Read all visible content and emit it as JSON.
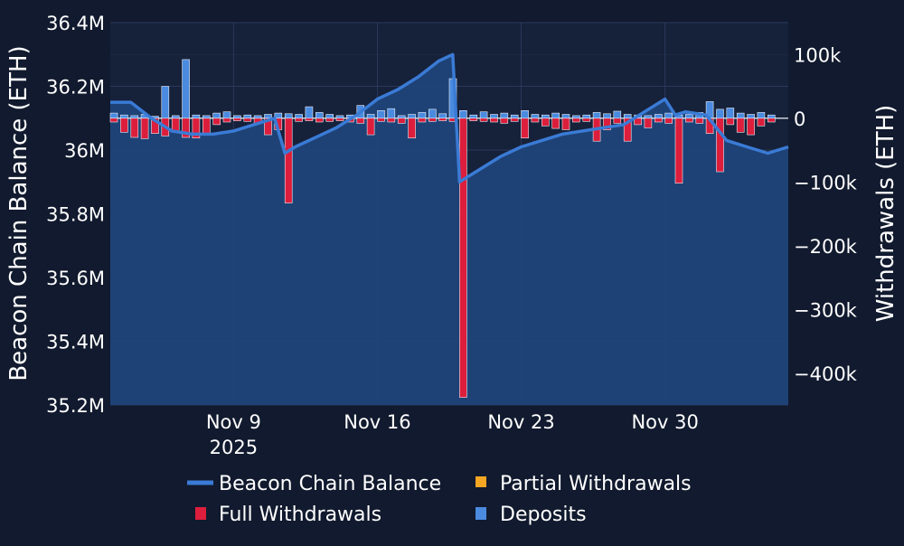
{
  "colors": {
    "background": "#111a2e",
    "plot_area": "#16213a",
    "grid": "#2a3a5c",
    "balance_line": "#3a7bd5",
    "balance_fill": "#1f4479",
    "full_withdrawals": "#dc1e3c",
    "partial_withdrawals": "#f5a623",
    "deposits": "#4a8be0"
  },
  "chart_data": {
    "type": "bar",
    "ylabel": "Beacon Chain Balance (ETH)",
    "y2label": "Withdrawals (ETH)",
    "ylim": [
      35200000,
      36400000
    ],
    "y2lim": [
      -450000,
      150000
    ],
    "x_ticks": [
      {
        "date": "2025-11-09",
        "label": "Nov 9",
        "sublabel": "2025"
      },
      {
        "date": "2025-11-16",
        "label": "Nov 16",
        "sublabel": ""
      },
      {
        "date": "2025-11-23",
        "label": "Nov 23",
        "sublabel": ""
      },
      {
        "date": "2025-11-30",
        "label": "Nov 30",
        "sublabel": ""
      }
    ],
    "y_ticks": [
      {
        "value": 35200000,
        "label": "35.2M"
      },
      {
        "value": 35400000,
        "label": "35.4M"
      },
      {
        "value": 35600000,
        "label": "35.6M"
      },
      {
        "value": 35800000,
        "label": "35.8M"
      },
      {
        "value": 36000000,
        "label": "36M"
      },
      {
        "value": 36200000,
        "label": "36.2M"
      },
      {
        "value": 36400000,
        "label": "36.4M"
      }
    ],
    "y2_ticks": [
      {
        "value": 100000,
        "label": "100k"
      },
      {
        "value": 0,
        "label": "0"
      },
      {
        "value": -100000,
        "label": "−100k"
      },
      {
        "value": -200000,
        "label": "−200k"
      },
      {
        "value": -300000,
        "label": "−300k"
      },
      {
        "value": -400000,
        "label": "−400k"
      }
    ],
    "legend": {
      "placement": "bottom",
      "items": [
        {
          "key": "balance",
          "label": "Beacon Chain Balance"
        },
        {
          "key": "partial",
          "label": "Partial Withdrawals"
        },
        {
          "key": "full",
          "label": "Full Withdrawals"
        },
        {
          "key": "deposits",
          "label": "Deposits"
        }
      ]
    },
    "series": [
      {
        "name": "Beacon Chain Balance",
        "axis": "left",
        "kind": "area-line",
        "points": [
          [
            "2025-11-03",
            36150000
          ],
          [
            "2025-11-04",
            36150000
          ],
          [
            "2025-11-05",
            36100000
          ],
          [
            "2025-11-06",
            36060000
          ],
          [
            "2025-11-07",
            36050000
          ],
          [
            "2025-11-08",
            36050000
          ],
          [
            "2025-11-09",
            36060000
          ],
          [
            "2025-11-10",
            36080000
          ],
          [
            "2025-11-11",
            36100000
          ],
          [
            "2025-11-11T12:00",
            35990000
          ],
          [
            "2025-11-12",
            36010000
          ],
          [
            "2025-11-13",
            36040000
          ],
          [
            "2025-11-14",
            36070000
          ],
          [
            "2025-11-15",
            36110000
          ],
          [
            "2025-11-16",
            36160000
          ],
          [
            "2025-11-17",
            36190000
          ],
          [
            "2025-11-18",
            36230000
          ],
          [
            "2025-11-19",
            36280000
          ],
          [
            "2025-11-19T16:00",
            36300000
          ],
          [
            "2025-11-20",
            35900000
          ],
          [
            "2025-11-21",
            35940000
          ],
          [
            "2025-11-22",
            35980000
          ],
          [
            "2025-11-23",
            36010000
          ],
          [
            "2025-11-24",
            36030000
          ],
          [
            "2025-11-25",
            36050000
          ],
          [
            "2025-11-26",
            36060000
          ],
          [
            "2025-11-27",
            36070000
          ],
          [
            "2025-11-28",
            36080000
          ],
          [
            "2025-11-29",
            36120000
          ],
          [
            "2025-11-30",
            36160000
          ],
          [
            "2025-11-30T12:00",
            36110000
          ],
          [
            "2025-12-01",
            36120000
          ],
          [
            "2025-12-02",
            36110000
          ],
          [
            "2025-12-03",
            36030000
          ],
          [
            "2025-12-04",
            36010000
          ],
          [
            "2025-12-05",
            35990000
          ],
          [
            "2025-12-06",
            36010000
          ]
        ]
      },
      {
        "name": "Deposits",
        "axis": "right",
        "kind": "bars",
        "points": [
          [
            "2025-11-03",
            8000
          ],
          [
            "2025-11-03T12:00",
            5000
          ],
          [
            "2025-11-04",
            4000
          ],
          [
            "2025-11-04T12:00",
            6000
          ],
          [
            "2025-11-05",
            3000
          ],
          [
            "2025-11-05T12:00",
            50000
          ],
          [
            "2025-11-06",
            4000
          ],
          [
            "2025-11-06T12:00",
            92000
          ],
          [
            "2025-11-07",
            5000
          ],
          [
            "2025-11-07T12:00",
            4000
          ],
          [
            "2025-11-08",
            8000
          ],
          [
            "2025-11-08T12:00",
            10000
          ],
          [
            "2025-11-09",
            4000
          ],
          [
            "2025-11-09T12:00",
            5000
          ],
          [
            "2025-11-10",
            4000
          ],
          [
            "2025-11-10T12:00",
            6000
          ],
          [
            "2025-11-11",
            8000
          ],
          [
            "2025-11-11T12:00",
            7000
          ],
          [
            "2025-11-12",
            6000
          ],
          [
            "2025-11-12T12:00",
            18000
          ],
          [
            "2025-11-13",
            9000
          ],
          [
            "2025-11-13T12:00",
            6000
          ],
          [
            "2025-11-14",
            4000
          ],
          [
            "2025-11-14T12:00",
            5000
          ],
          [
            "2025-11-15",
            20000
          ],
          [
            "2025-11-15T12:00",
            6000
          ],
          [
            "2025-11-16",
            12000
          ],
          [
            "2025-11-16T12:00",
            15000
          ],
          [
            "2025-11-17",
            4000
          ],
          [
            "2025-11-17T12:00",
            6000
          ],
          [
            "2025-11-18",
            9000
          ],
          [
            "2025-11-18T12:00",
            14000
          ],
          [
            "2025-11-19",
            7000
          ],
          [
            "2025-11-19T12:00",
            62000
          ],
          [
            "2025-11-20",
            12000
          ],
          [
            "2025-11-20T12:00",
            5000
          ],
          [
            "2025-11-21",
            10000
          ],
          [
            "2025-11-21T12:00",
            6000
          ],
          [
            "2025-11-22",
            8000
          ],
          [
            "2025-11-22T12:00",
            5000
          ],
          [
            "2025-11-23",
            12000
          ],
          [
            "2025-11-23T12:00",
            6000
          ],
          [
            "2025-11-24",
            5000
          ],
          [
            "2025-11-24T12:00",
            8000
          ],
          [
            "2025-11-25",
            6000
          ],
          [
            "2025-11-25T12:00",
            4000
          ],
          [
            "2025-11-26",
            5000
          ],
          [
            "2025-11-26T12:00",
            9000
          ],
          [
            "2025-11-27",
            7000
          ],
          [
            "2025-11-27T12:00",
            11000
          ],
          [
            "2025-11-28",
            6000
          ],
          [
            "2025-11-28T12:00",
            5000
          ],
          [
            "2025-11-29",
            4000
          ],
          [
            "2025-11-29T12:00",
            6000
          ],
          [
            "2025-11-30",
            8000
          ],
          [
            "2025-11-30T12:00",
            5000
          ],
          [
            "2025-12-01",
            6000
          ],
          [
            "2025-12-01T12:00",
            9000
          ],
          [
            "2025-12-02",
            26000
          ],
          [
            "2025-12-02T12:00",
            14000
          ],
          [
            "2025-12-03",
            16000
          ],
          [
            "2025-12-03T12:00",
            8000
          ],
          [
            "2025-12-04",
            6000
          ],
          [
            "2025-12-04T12:00",
            9000
          ],
          [
            "2025-12-05",
            5000
          ]
        ]
      },
      {
        "name": "Full Withdrawals",
        "axis": "right",
        "kind": "bars",
        "points": [
          [
            "2025-11-03",
            -6000
          ],
          [
            "2025-11-03T12:00",
            -22000
          ],
          [
            "2025-11-04",
            -30000
          ],
          [
            "2025-11-04T12:00",
            -32000
          ],
          [
            "2025-11-05",
            -24000
          ],
          [
            "2025-11-05T12:00",
            -28000
          ],
          [
            "2025-11-06",
            -22000
          ],
          [
            "2025-11-06T12:00",
            -30000
          ],
          [
            "2025-11-07",
            -31000
          ],
          [
            "2025-11-07T12:00",
            -26000
          ],
          [
            "2025-11-08",
            -10000
          ],
          [
            "2025-11-08T12:00",
            -6000
          ],
          [
            "2025-11-09",
            -4000
          ],
          [
            "2025-11-09T12:00",
            -5000
          ],
          [
            "2025-11-10",
            -8000
          ],
          [
            "2025-11-10T12:00",
            -26000
          ],
          [
            "2025-11-11",
            -18000
          ],
          [
            "2025-11-11T12:00",
            -133000
          ],
          [
            "2025-11-12",
            -5000
          ],
          [
            "2025-11-12T12:00",
            -4000
          ],
          [
            "2025-11-13",
            -6000
          ],
          [
            "2025-11-13T12:00",
            -5000
          ],
          [
            "2025-11-14",
            -4000
          ],
          [
            "2025-11-14T12:00",
            -6000
          ],
          [
            "2025-11-15",
            -8000
          ],
          [
            "2025-11-15T12:00",
            -26000
          ],
          [
            "2025-11-16",
            -5000
          ],
          [
            "2025-11-16T12:00",
            -6000
          ],
          [
            "2025-11-17",
            -8000
          ],
          [
            "2025-11-17T12:00",
            -31000
          ],
          [
            "2025-11-18",
            -6000
          ],
          [
            "2025-11-18T12:00",
            -5000
          ],
          [
            "2025-11-19",
            -4000
          ],
          [
            "2025-11-19T12:00",
            -5000
          ],
          [
            "2025-11-20",
            -438000
          ],
          [
            "2025-11-20T12:00",
            -4000
          ],
          [
            "2025-11-21",
            -5000
          ],
          [
            "2025-11-21T12:00",
            -6000
          ],
          [
            "2025-11-22",
            -8000
          ],
          [
            "2025-11-22T12:00",
            -5000
          ],
          [
            "2025-11-23",
            -31000
          ],
          [
            "2025-11-23T12:00",
            -6000
          ],
          [
            "2025-11-24",
            -12000
          ],
          [
            "2025-11-24T12:00",
            -16000
          ],
          [
            "2025-11-25",
            -18000
          ],
          [
            "2025-11-25T12:00",
            -6000
          ],
          [
            "2025-11-26",
            -5000
          ],
          [
            "2025-11-26T12:00",
            -36000
          ],
          [
            "2025-11-27",
            -18000
          ],
          [
            "2025-11-27T12:00",
            -8000
          ],
          [
            "2025-11-28",
            -36000
          ],
          [
            "2025-11-28T12:00",
            -10000
          ],
          [
            "2025-11-29",
            -15000
          ],
          [
            "2025-11-29T12:00",
            -6000
          ],
          [
            "2025-11-30",
            -8000
          ],
          [
            "2025-11-30T12:00",
            -102000
          ],
          [
            "2025-12-01",
            -6000
          ],
          [
            "2025-12-01T12:00",
            -8000
          ],
          [
            "2025-12-02",
            -24000
          ],
          [
            "2025-12-02T12:00",
            -84000
          ],
          [
            "2025-12-03",
            -10000
          ],
          [
            "2025-12-03T12:00",
            -22000
          ],
          [
            "2025-12-04",
            -26000
          ],
          [
            "2025-12-04T12:00",
            -12000
          ],
          [
            "2025-12-05",
            -6000
          ]
        ]
      },
      {
        "name": "Partial Withdrawals",
        "axis": "right",
        "kind": "bars",
        "points": []
      }
    ]
  }
}
